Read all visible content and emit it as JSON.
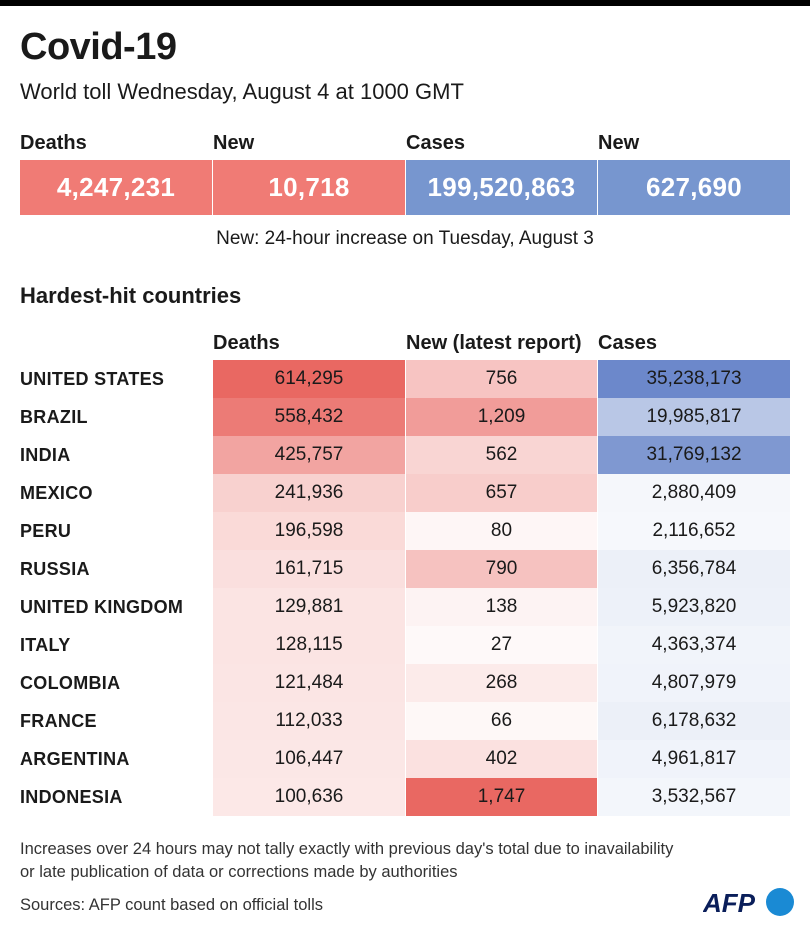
{
  "title": "Covid-19",
  "subtitle": "World toll Wednesday, August 4 at 1000 GMT",
  "world": {
    "deaths_label": "Deaths",
    "deaths": "4,247,231",
    "new_deaths_label": "New",
    "new_deaths": "10,718",
    "cases_label": "Cases",
    "cases": "199,520,863",
    "new_cases_label": "New",
    "new_cases": "627,690",
    "note": "New: 24-hour increase on Tuesday, August 3"
  },
  "colors": {
    "death": "#f07b75",
    "case": "#7796cf"
  },
  "chart_data": {
    "type": "table",
    "title": "Hardest-hit countries",
    "columns": [
      "Deaths",
      "New (latest report)",
      "Cases"
    ],
    "rows": [
      {
        "country": "UNITED STATES",
        "deaths": "614,295",
        "new": "756",
        "cases": "35,238,173"
      },
      {
        "country": "BRAZIL",
        "deaths": "558,432",
        "new": "1,209",
        "cases": "19,985,817"
      },
      {
        "country": "INDIA",
        "deaths": "425,757",
        "new": "562",
        "cases": "31,769,132"
      },
      {
        "country": "MEXICO",
        "deaths": "241,936",
        "new": "657",
        "cases": "2,880,409"
      },
      {
        "country": "PERU",
        "deaths": "196,598",
        "new": "80",
        "cases": "2,116,652"
      },
      {
        "country": "RUSSIA",
        "deaths": "161,715",
        "new": "790",
        "cases": "6,356,784"
      },
      {
        "country": "UNITED KINGDOM",
        "deaths": "129,881",
        "new": "138",
        "cases": "5,923,820"
      },
      {
        "country": "ITALY",
        "deaths": "128,115",
        "new": "27",
        "cases": "4,363,374"
      },
      {
        "country": "COLOMBIA",
        "deaths": "121,484",
        "new": "268",
        "cases": "4,807,979"
      },
      {
        "country": "FRANCE",
        "deaths": "112,033",
        "new": "66",
        "cases": "6,178,632"
      },
      {
        "country": "ARGENTINA",
        "deaths": "106,447",
        "new": "402",
        "cases": "4,961,817"
      },
      {
        "country": "INDONESIA",
        "deaths": "100,636",
        "new": "1,747",
        "cases": "3,532,567"
      }
    ]
  },
  "footnote": [
    "Increases over 24 hours may not tally exactly with previous day's total due to inavailability",
    "or late publication of data or corrections made by authorities"
  ],
  "sources": "Sources: AFP count based on official tolls",
  "logo_text": "AFP"
}
